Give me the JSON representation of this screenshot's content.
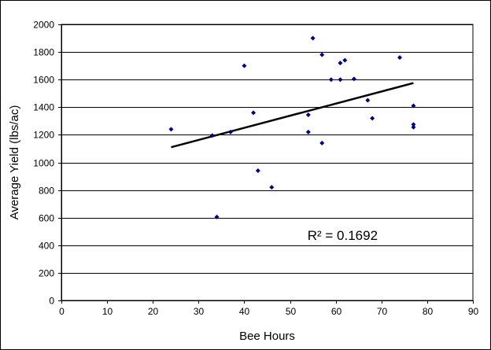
{
  "chart_data": {
    "type": "scatter",
    "title": "",
    "xlabel": "Bee Hours",
    "ylabel": "Average Yield  (lbs/ac)",
    "xlim": [
      0,
      90
    ],
    "ylim": [
      0,
      2000
    ],
    "x_ticks": [
      0,
      10,
      20,
      30,
      40,
      50,
      60,
      70,
      80,
      90
    ],
    "y_ticks": [
      0,
      200,
      400,
      600,
      800,
      1000,
      1200,
      1400,
      1600,
      1800,
      2000
    ],
    "grid": "horizontal",
    "legend": "none",
    "marker_color": "#000080",
    "points": [
      {
        "x": 24,
        "y": 1240
      },
      {
        "x": 33,
        "y": 1195
      },
      {
        "x": 34,
        "y": 605
      },
      {
        "x": 37,
        "y": 1220
      },
      {
        "x": 40,
        "y": 1700
      },
      {
        "x": 42,
        "y": 1360
      },
      {
        "x": 43,
        "y": 940
      },
      {
        "x": 46,
        "y": 820
      },
      {
        "x": 54,
        "y": 1345
      },
      {
        "x": 54,
        "y": 1220
      },
      {
        "x": 55,
        "y": 1900
      },
      {
        "x": 57,
        "y": 1780
      },
      {
        "x": 57,
        "y": 1140
      },
      {
        "x": 59,
        "y": 1600
      },
      {
        "x": 61,
        "y": 1720
      },
      {
        "x": 61,
        "y": 1600
      },
      {
        "x": 62,
        "y": 1740
      },
      {
        "x": 64,
        "y": 1605
      },
      {
        "x": 67,
        "y": 1450
      },
      {
        "x": 68,
        "y": 1320
      },
      {
        "x": 74,
        "y": 1760
      },
      {
        "x": 77,
        "y": 1410
      },
      {
        "x": 77,
        "y": 1275
      },
      {
        "x": 77,
        "y": 1255
      }
    ],
    "trendline": {
      "type": "linear",
      "color": "#000000",
      "start": {
        "x": 24,
        "y": 1110
      },
      "end": {
        "x": 77,
        "y": 1575
      }
    },
    "annotations": [
      {
        "text": "R² = 0.1692",
        "x": 61.5,
        "y": 440
      }
    ]
  }
}
